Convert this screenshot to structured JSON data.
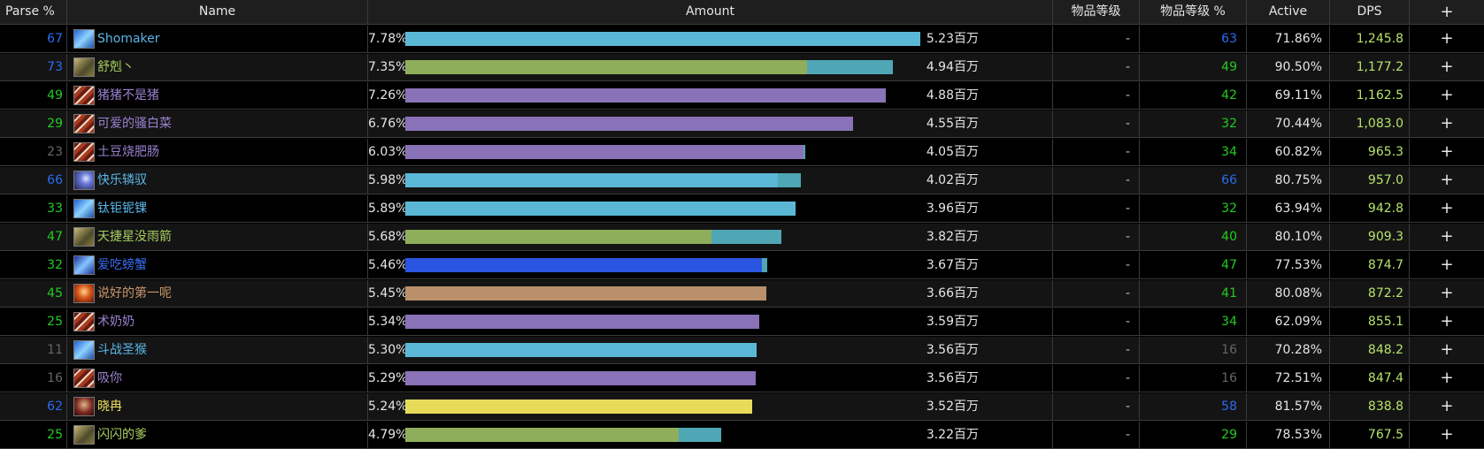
{
  "headers": {
    "parse": "Parse %",
    "name": "Name",
    "amount": "Amount",
    "ilvl": "物品等级",
    "ilvl_pct": "物品等级 %",
    "active": "Active",
    "dps": "DPS",
    "plus": "+"
  },
  "colors": {
    "orange": "#ff8000",
    "purple": "#a335ee",
    "blue": "#1e6cf0",
    "green": "#1eff00",
    "gray": "#666666",
    "bar_shaman": "#5ab8d6",
    "bar_hunter": "#8fae5c",
    "bar_warlock": "#8a72b8",
    "bar_mage": "#2a55e0",
    "bar_warrior": "#b9906a",
    "bar_rogue": "#e6dc5a",
    "bar_extra": "#4fa6b4"
  },
  "rows": [
    {
      "parse": "67",
      "parse_color": "#2a6cf0",
      "icon": "frost-icon",
      "icon_class": "frost",
      "name": "Shomaker",
      "name_color": "#5bb6e8",
      "pct": "7.78%",
      "fraction": 1.0,
      "bar_color": "#5ab8d6",
      "extra": 0,
      "amount": "5.23百万",
      "ilvl": "-",
      "ilvl_pct": "63",
      "ilvl_color": "#2a6cf0",
      "active": "71.86%",
      "dps": "1,245.8",
      "dps_color": "#b6e36a",
      "plus": "+"
    },
    {
      "parse": "73",
      "parse_color": "#2a6cf0",
      "icon": "hunter-icon",
      "icon_class": "hunt",
      "name": "舒剋丶",
      "name_color": "#a8d060",
      "pct": "7.35%",
      "fraction": 0.78,
      "bar_color": "#8fae5c",
      "extra": 0.167,
      "amount": "4.94百万",
      "ilvl": "-",
      "ilvl_pct": "49",
      "ilvl_color": "#22cc22",
      "active": "90.50%",
      "dps": "1,177.2",
      "dps_color": "#b6e36a",
      "plus": "+"
    },
    {
      "parse": "49",
      "parse_color": "#22cc22",
      "icon": "warlock-icon",
      "icon_class": "arms",
      "name": "猪猪不是猪",
      "name_color": "#9a82d0",
      "pct": "7.26%",
      "fraction": 0.933,
      "bar_color": "#8a72b8",
      "extra": 0,
      "amount": "4.88百万",
      "ilvl": "-",
      "ilvl_pct": "42",
      "ilvl_color": "#22cc22",
      "active": "69.11%",
      "dps": "1,162.5",
      "dps_color": "#b6e36a",
      "plus": "+"
    },
    {
      "parse": "29",
      "parse_color": "#22cc22",
      "icon": "warlock-icon",
      "icon_class": "arms",
      "name": "可爱的骚白菜",
      "name_color": "#9a82d0",
      "pct": "6.76%",
      "fraction": 0.87,
      "bar_color": "#8a72b8",
      "extra": 0,
      "amount": "4.55百万",
      "ilvl": "-",
      "ilvl_pct": "32",
      "ilvl_color": "#22cc22",
      "active": "70.44%",
      "dps": "1,083.0",
      "dps_color": "#b6e36a",
      "plus": "+"
    },
    {
      "parse": "23",
      "parse_color": "#666666",
      "icon": "warlock-icon",
      "icon_class": "arms",
      "name": "土豆烧肥肠",
      "name_color": "#9a82d0",
      "pct": "6.03%",
      "fraction": 0.773,
      "bar_color": "#8a72b8",
      "extra": 0.004,
      "amount": "4.05百万",
      "ilvl": "-",
      "ilvl_pct": "34",
      "ilvl_color": "#22cc22",
      "active": "60.82%",
      "dps": "965.3",
      "dps_color": "#b6e36a",
      "plus": "+"
    },
    {
      "parse": "66",
      "parse_color": "#2a6cf0",
      "icon": "shadow-icon",
      "icon_class": "shadow",
      "name": "快乐辚驭",
      "name_color": "#5bb6e8",
      "pct": "5.98%",
      "fraction": 0.723,
      "bar_color": "#5ab8d6",
      "extra": 0.045,
      "amount": "4.02百万",
      "ilvl": "-",
      "ilvl_pct": "66",
      "ilvl_color": "#2a6cf0",
      "active": "80.75%",
      "dps": "957.0",
      "dps_color": "#b6e36a",
      "plus": "+"
    },
    {
      "parse": "33",
      "parse_color": "#22cc22",
      "icon": "frost-icon",
      "icon_class": "frost",
      "name": "钛钜铌锞",
      "name_color": "#5bb6e8",
      "pct": "5.89%",
      "fraction": 0.757,
      "bar_color": "#5ab8d6",
      "extra": 0,
      "amount": "3.96百万",
      "ilvl": "-",
      "ilvl_pct": "32",
      "ilvl_color": "#22cc22",
      "active": "63.94%",
      "dps": "942.8",
      "dps_color": "#b6e36a",
      "plus": "+"
    },
    {
      "parse": "47",
      "parse_color": "#22cc22",
      "icon": "hunter-icon",
      "icon_class": "hunt",
      "name": "天捷星没雨箭",
      "name_color": "#a8d060",
      "pct": "5.68%",
      "fraction": 0.595,
      "bar_color": "#8fae5c",
      "extra": 0.136,
      "amount": "3.82百万",
      "ilvl": "-",
      "ilvl_pct": "40",
      "ilvl_color": "#22cc22",
      "active": "80.10%",
      "dps": "909.3",
      "dps_color": "#b6e36a",
      "plus": "+"
    },
    {
      "parse": "32",
      "parse_color": "#22cc22",
      "icon": "mage-icon",
      "icon_class": "ench",
      "name": "爱吃螃蟹",
      "name_color": "#3a6cf0",
      "pct": "5.46%",
      "fraction": 0.693,
      "bar_color": "#2a55e0",
      "extra": 0.01,
      "amount": "3.67百万",
      "ilvl": "-",
      "ilvl_pct": "47",
      "ilvl_color": "#22cc22",
      "active": "77.53%",
      "dps": "874.7",
      "dps_color": "#b6e36a",
      "plus": "+"
    },
    {
      "parse": "45",
      "parse_color": "#22cc22",
      "icon": "warrior-icon",
      "icon_class": "fury",
      "name": "说好的第一呢",
      "name_color": "#c8966a",
      "pct": "5.45%",
      "fraction": 0.701,
      "bar_color": "#b9906a",
      "extra": 0,
      "amount": "3.66百万",
      "ilvl": "-",
      "ilvl_pct": "41",
      "ilvl_color": "#22cc22",
      "active": "80.08%",
      "dps": "872.2",
      "dps_color": "#b6e36a",
      "plus": "+"
    },
    {
      "parse": "25",
      "parse_color": "#22cc22",
      "icon": "warlock-icon",
      "icon_class": "arms",
      "name": "术奶奶",
      "name_color": "#9a82d0",
      "pct": "5.34%",
      "fraction": 0.687,
      "bar_color": "#8a72b8",
      "extra": 0,
      "amount": "3.59百万",
      "ilvl": "-",
      "ilvl_pct": "34",
      "ilvl_color": "#22cc22",
      "active": "62.09%",
      "dps": "855.1",
      "dps_color": "#b6e36a",
      "plus": "+"
    },
    {
      "parse": "11",
      "parse_color": "#666666",
      "icon": "frost-icon",
      "icon_class": "frost",
      "name": "斗战圣猴",
      "name_color": "#5bb6e8",
      "pct": "5.30%",
      "fraction": 0.682,
      "bar_color": "#5ab8d6",
      "extra": 0,
      "amount": "3.56百万",
      "ilvl": "-",
      "ilvl_pct": "16",
      "ilvl_color": "#666666",
      "active": "70.28%",
      "dps": "848.2",
      "dps_color": "#b6e36a",
      "plus": "+"
    },
    {
      "parse": "16",
      "parse_color": "#666666",
      "icon": "warlock-icon",
      "icon_class": "arms",
      "name": "吸你",
      "name_color": "#9a82d0",
      "pct": "5.29%",
      "fraction": 0.68,
      "bar_color": "#8a72b8",
      "extra": 0,
      "amount": "3.56百万",
      "ilvl": "-",
      "ilvl_pct": "16",
      "ilvl_color": "#666666",
      "active": "72.51%",
      "dps": "847.4",
      "dps_color": "#b6e36a",
      "plus": "+"
    },
    {
      "parse": "62",
      "parse_color": "#2a6cf0",
      "icon": "rogue-icon",
      "icon_class": "rogue",
      "name": "晓冉",
      "name_color": "#f0e060",
      "pct": "5.24%",
      "fraction": 0.673,
      "bar_color": "#e6dc5a",
      "extra": 0,
      "amount": "3.52百万",
      "ilvl": "-",
      "ilvl_pct": "58",
      "ilvl_color": "#2a6cf0",
      "active": "81.57%",
      "dps": "838.8",
      "dps_color": "#b6e36a",
      "plus": "+"
    },
    {
      "parse": "25",
      "parse_color": "#22cc22",
      "icon": "hunter-icon",
      "icon_class": "hunt",
      "name": "闪闪的爹",
      "name_color": "#a8d060",
      "pct": "4.79%",
      "fraction": 0.531,
      "bar_color": "#8fae5c",
      "extra": 0.083,
      "amount": "3.22百万",
      "ilvl": "-",
      "ilvl_pct": "29",
      "ilvl_color": "#22cc22",
      "active": "78.53%",
      "dps": "767.5",
      "dps_color": "#b6e36a",
      "plus": "+"
    }
  ]
}
